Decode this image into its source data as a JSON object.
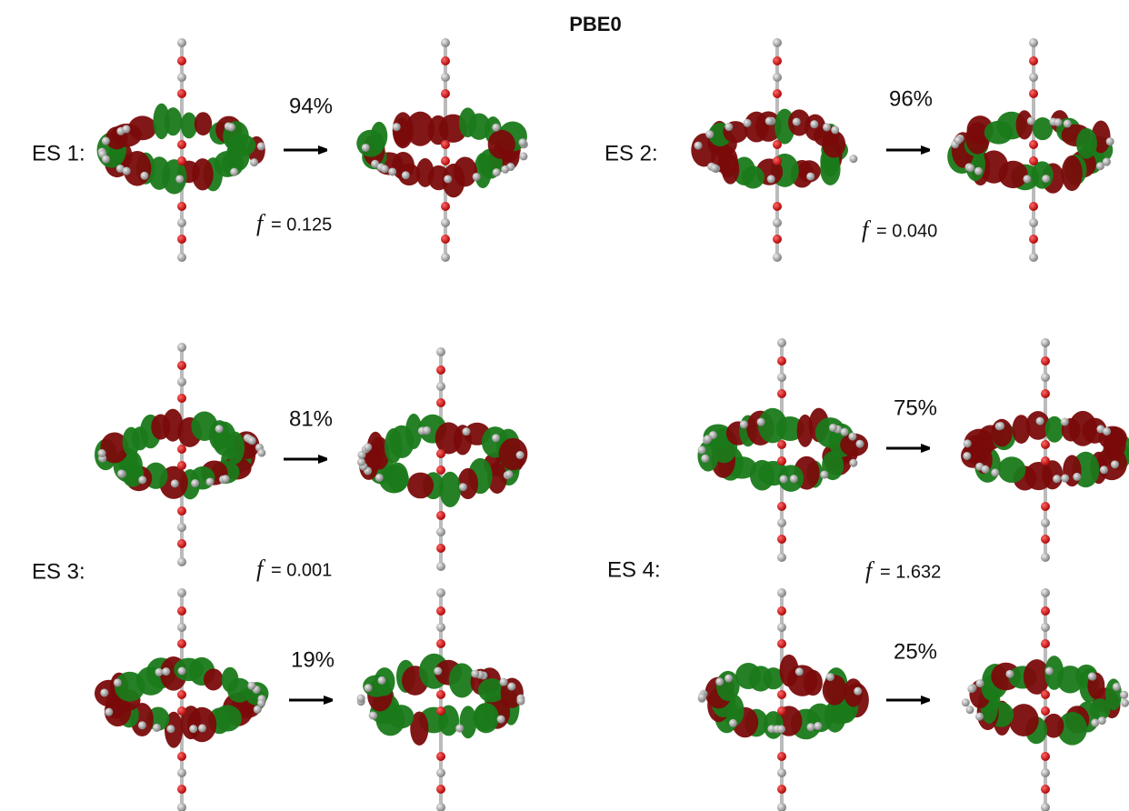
{
  "title": "PBE0",
  "states": [
    {
      "label": "ES 1:",
      "transitions": [
        {
          "weight": "94%"
        }
      ],
      "f_symbol": "f",
      "f_value": "= 0.125"
    },
    {
      "label": "ES 2:",
      "transitions": [
        {
          "weight": "96%"
        }
      ],
      "f_symbol": "f",
      "f_value": "= 0.040"
    },
    {
      "label": "ES 3:",
      "transitions": [
        {
          "weight": "81%"
        },
        {
          "weight": "19%"
        }
      ],
      "f_symbol": "f",
      "f_value": "= 0.001"
    },
    {
      "label": "ES 4:",
      "transitions": [
        {
          "weight": "75%"
        },
        {
          "weight": "25%"
        }
      ],
      "f_symbol": "f",
      "f_value": "= 1.632"
    }
  ]
}
